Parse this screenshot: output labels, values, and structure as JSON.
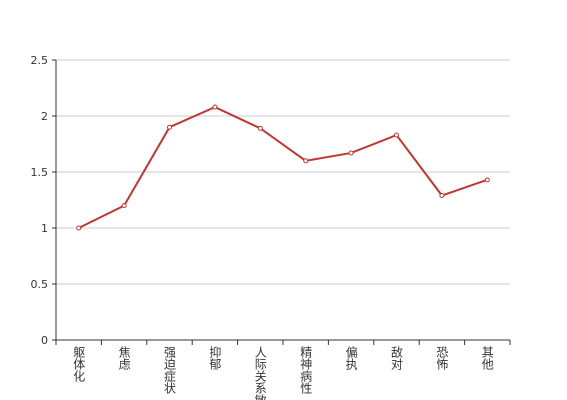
{
  "chart_data": {
    "type": "line",
    "categories": [
      "躯体化",
      "焦虑",
      "强迫症状",
      "抑郁",
      "人际关系敏感",
      "精神病性",
      "偏执",
      "敌对",
      "恐怖",
      "其他"
    ],
    "series": [
      {
        "color": "#c23531",
        "values": [
          1.0,
          1.2,
          1.9,
          2.08,
          1.89,
          1.6,
          1.67,
          1.83,
          1.29,
          1.43
        ]
      }
    ],
    "ylim": [
      0,
      2.5
    ],
    "yticks": [
      0,
      0.5,
      1,
      1.5,
      2,
      2.5
    ],
    "grid": true
  }
}
